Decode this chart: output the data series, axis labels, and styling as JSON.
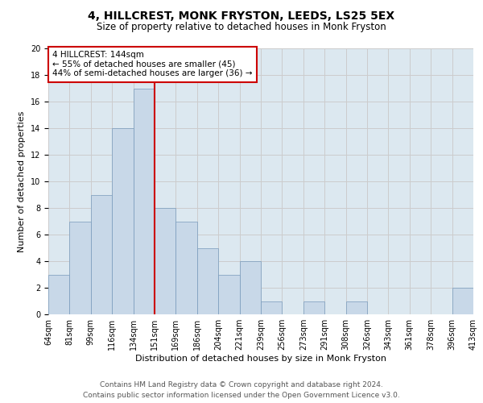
{
  "title": "4, HILLCREST, MONK FRYSTON, LEEDS, LS25 5EX",
  "subtitle": "Size of property relative to detached houses in Monk Fryston",
  "xlabel": "Distribution of detached houses by size in Monk Fryston",
  "ylabel": "Number of detached properties",
  "footer_line1": "Contains HM Land Registry data © Crown copyright and database right 2024.",
  "footer_line2": "Contains public sector information licensed under the Open Government Licence v3.0.",
  "bin_labels": [
    "64sqm",
    "81sqm",
    "99sqm",
    "116sqm",
    "134sqm",
    "151sqm",
    "169sqm",
    "186sqm",
    "204sqm",
    "221sqm",
    "239sqm",
    "256sqm",
    "273sqm",
    "291sqm",
    "308sqm",
    "326sqm",
    "343sqm",
    "361sqm",
    "378sqm",
    "396sqm",
    "413sqm"
  ],
  "bar_values": [
    3,
    7,
    9,
    14,
    17,
    8,
    7,
    5,
    3,
    4,
    1,
    0,
    1,
    0,
    1,
    0,
    0,
    0,
    0,
    2
  ],
  "bar_color": "#c8d8e8",
  "bar_edge_color": "#7799bb",
  "annotation_text": "4 HILLCREST: 144sqm\n← 55% of detached houses are smaller (45)\n44% of semi-detached houses are larger (36) →",
  "annotation_box_color": "#ffffff",
  "annotation_box_edge_color": "#cc0000",
  "vline_x_bar_index": 4,
  "vline_color": "#cc0000",
  "ylim": [
    0,
    20
  ],
  "yticks": [
    0,
    2,
    4,
    6,
    8,
    10,
    12,
    14,
    16,
    18,
    20
  ],
  "grid_color": "#cccccc",
  "bg_color": "#dce8f0",
  "title_fontsize": 10,
  "subtitle_fontsize": 8.5,
  "axis_label_fontsize": 8,
  "tick_fontsize": 7,
  "annotation_fontsize": 7.5,
  "footer_fontsize": 6.5
}
